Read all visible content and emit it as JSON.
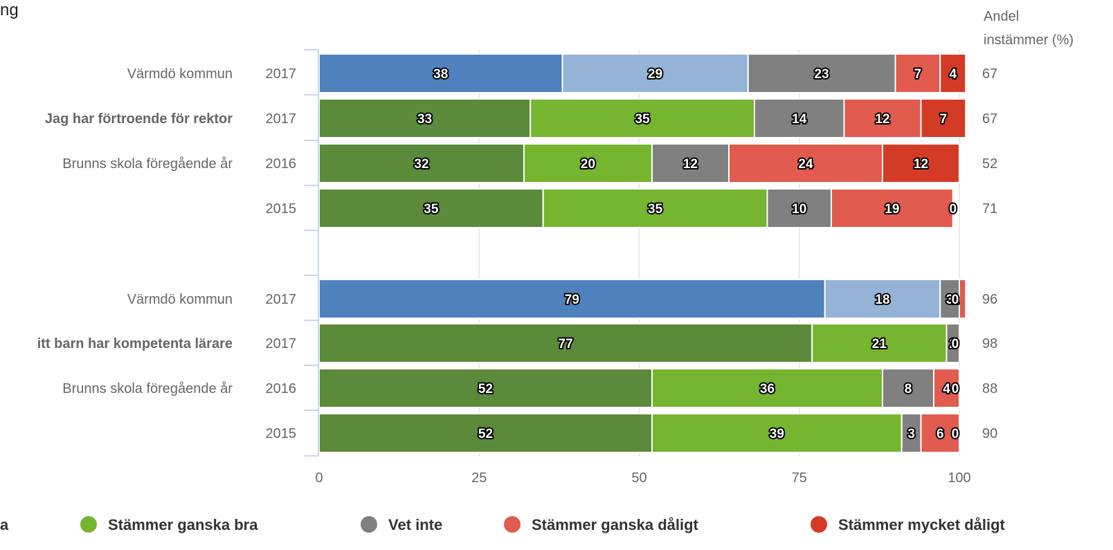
{
  "title_fragment": "ng",
  "right_header": [
    "Andel",
    "instämmer (%)"
  ],
  "chart_data": {
    "type": "bar",
    "orientation": "horizontal",
    "stacked": true,
    "xlim": [
      0,
      100
    ],
    "xticks": [
      "0",
      "25",
      "50",
      "75",
      "100"
    ],
    "grid": true,
    "legend_position": "bottom",
    "palettes": {
      "municipality": [
        "#4f81bd",
        "#95b3d7",
        "#808080",
        "#e15b4e",
        "#d43b26"
      ],
      "school": [
        "#5a8a3a",
        "#76b52f",
        "#808080",
        "#e15b4e",
        "#d43b26"
      ]
    },
    "legend": [
      {
        "label": "a",
        "color": "#5a8a3a"
      },
      {
        "label": "Stämmer ganska bra",
        "color": "#76b52f"
      },
      {
        "label": "Vet inte",
        "color": "#808080"
      },
      {
        "label": "Stämmer ganska dåligt",
        "color": "#e15b4e"
      },
      {
        "label": "Stämmer mycket dåligt",
        "color": "#d43b26"
      }
    ],
    "rows": [
      {
        "label": "Värmdö kommun",
        "bold": false,
        "year": "2017",
        "palette": "municipality",
        "values": [
          38,
          29,
          23,
          7,
          4
        ],
        "agree": "67"
      },
      {
        "label": "Jag har förtroende för rektor",
        "bold": true,
        "year": "2017",
        "palette": "school",
        "values": [
          33,
          35,
          14,
          12,
          7
        ],
        "agree": "67"
      },
      {
        "label": "Brunns skola föregående år",
        "bold": false,
        "year": "2016",
        "palette": "school",
        "values": [
          32,
          20,
          12,
          24,
          12
        ],
        "agree": "52"
      },
      {
        "label": "",
        "bold": false,
        "year": "2015",
        "palette": "school",
        "values": [
          35,
          35,
          10,
          19,
          0
        ],
        "agree": "71"
      },
      {
        "label": "Värmdö kommun",
        "bold": false,
        "year": "2017",
        "palette": "municipality",
        "values": [
          79,
          18,
          3,
          1,
          0
        ],
        "agree": "96"
      },
      {
        "label": "itt barn har kompetenta lärare",
        "bold": true,
        "year": "2017",
        "palette": "school",
        "values": [
          77,
          21,
          2,
          0,
          0
        ],
        "agree": "98"
      },
      {
        "label": "Brunns skola föregående år",
        "bold": false,
        "year": "2016",
        "palette": "school",
        "values": [
          52,
          36,
          8,
          4,
          0
        ],
        "agree": "88"
      },
      {
        "label": "",
        "bold": false,
        "year": "2015",
        "palette": "school",
        "values": [
          52,
          39,
          3,
          6,
          0
        ],
        "agree": "90"
      }
    ]
  }
}
